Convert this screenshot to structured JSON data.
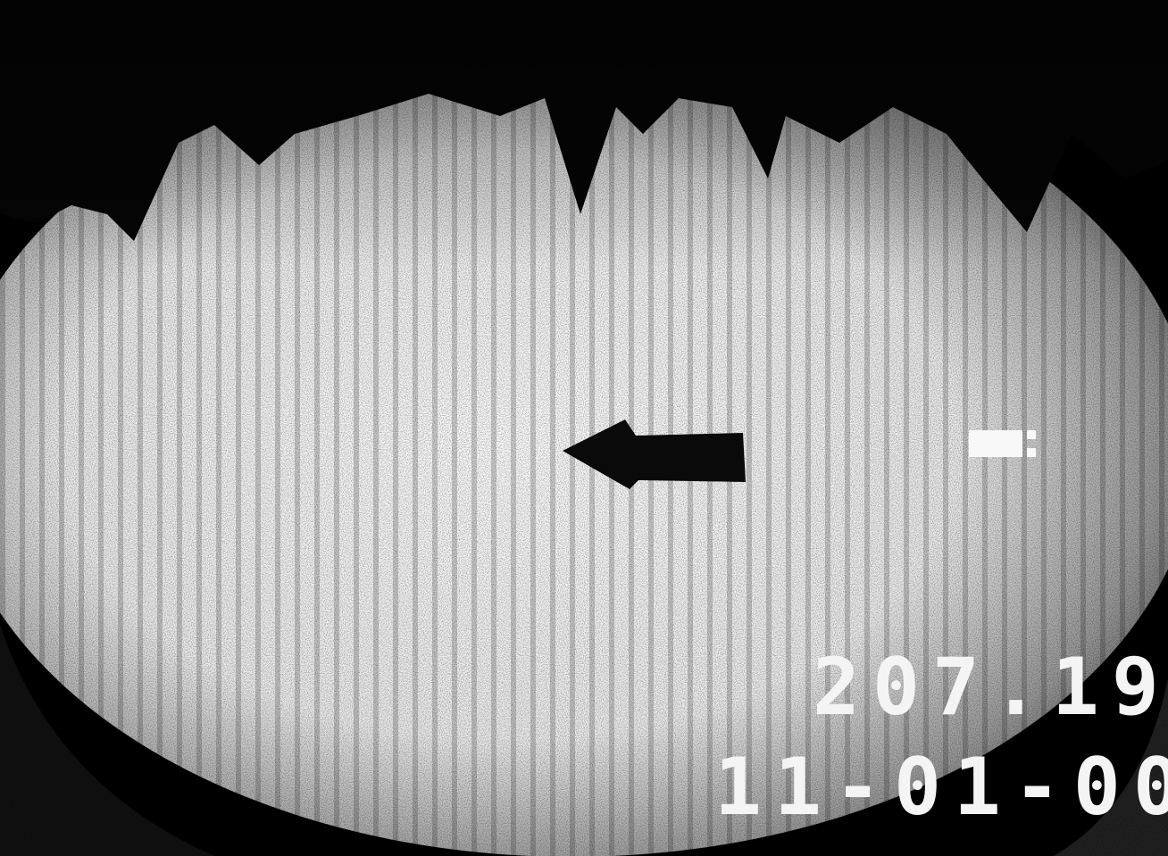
{
  "overlay": {
    "reading": "207.19",
    "date": "11-01-00"
  }
}
